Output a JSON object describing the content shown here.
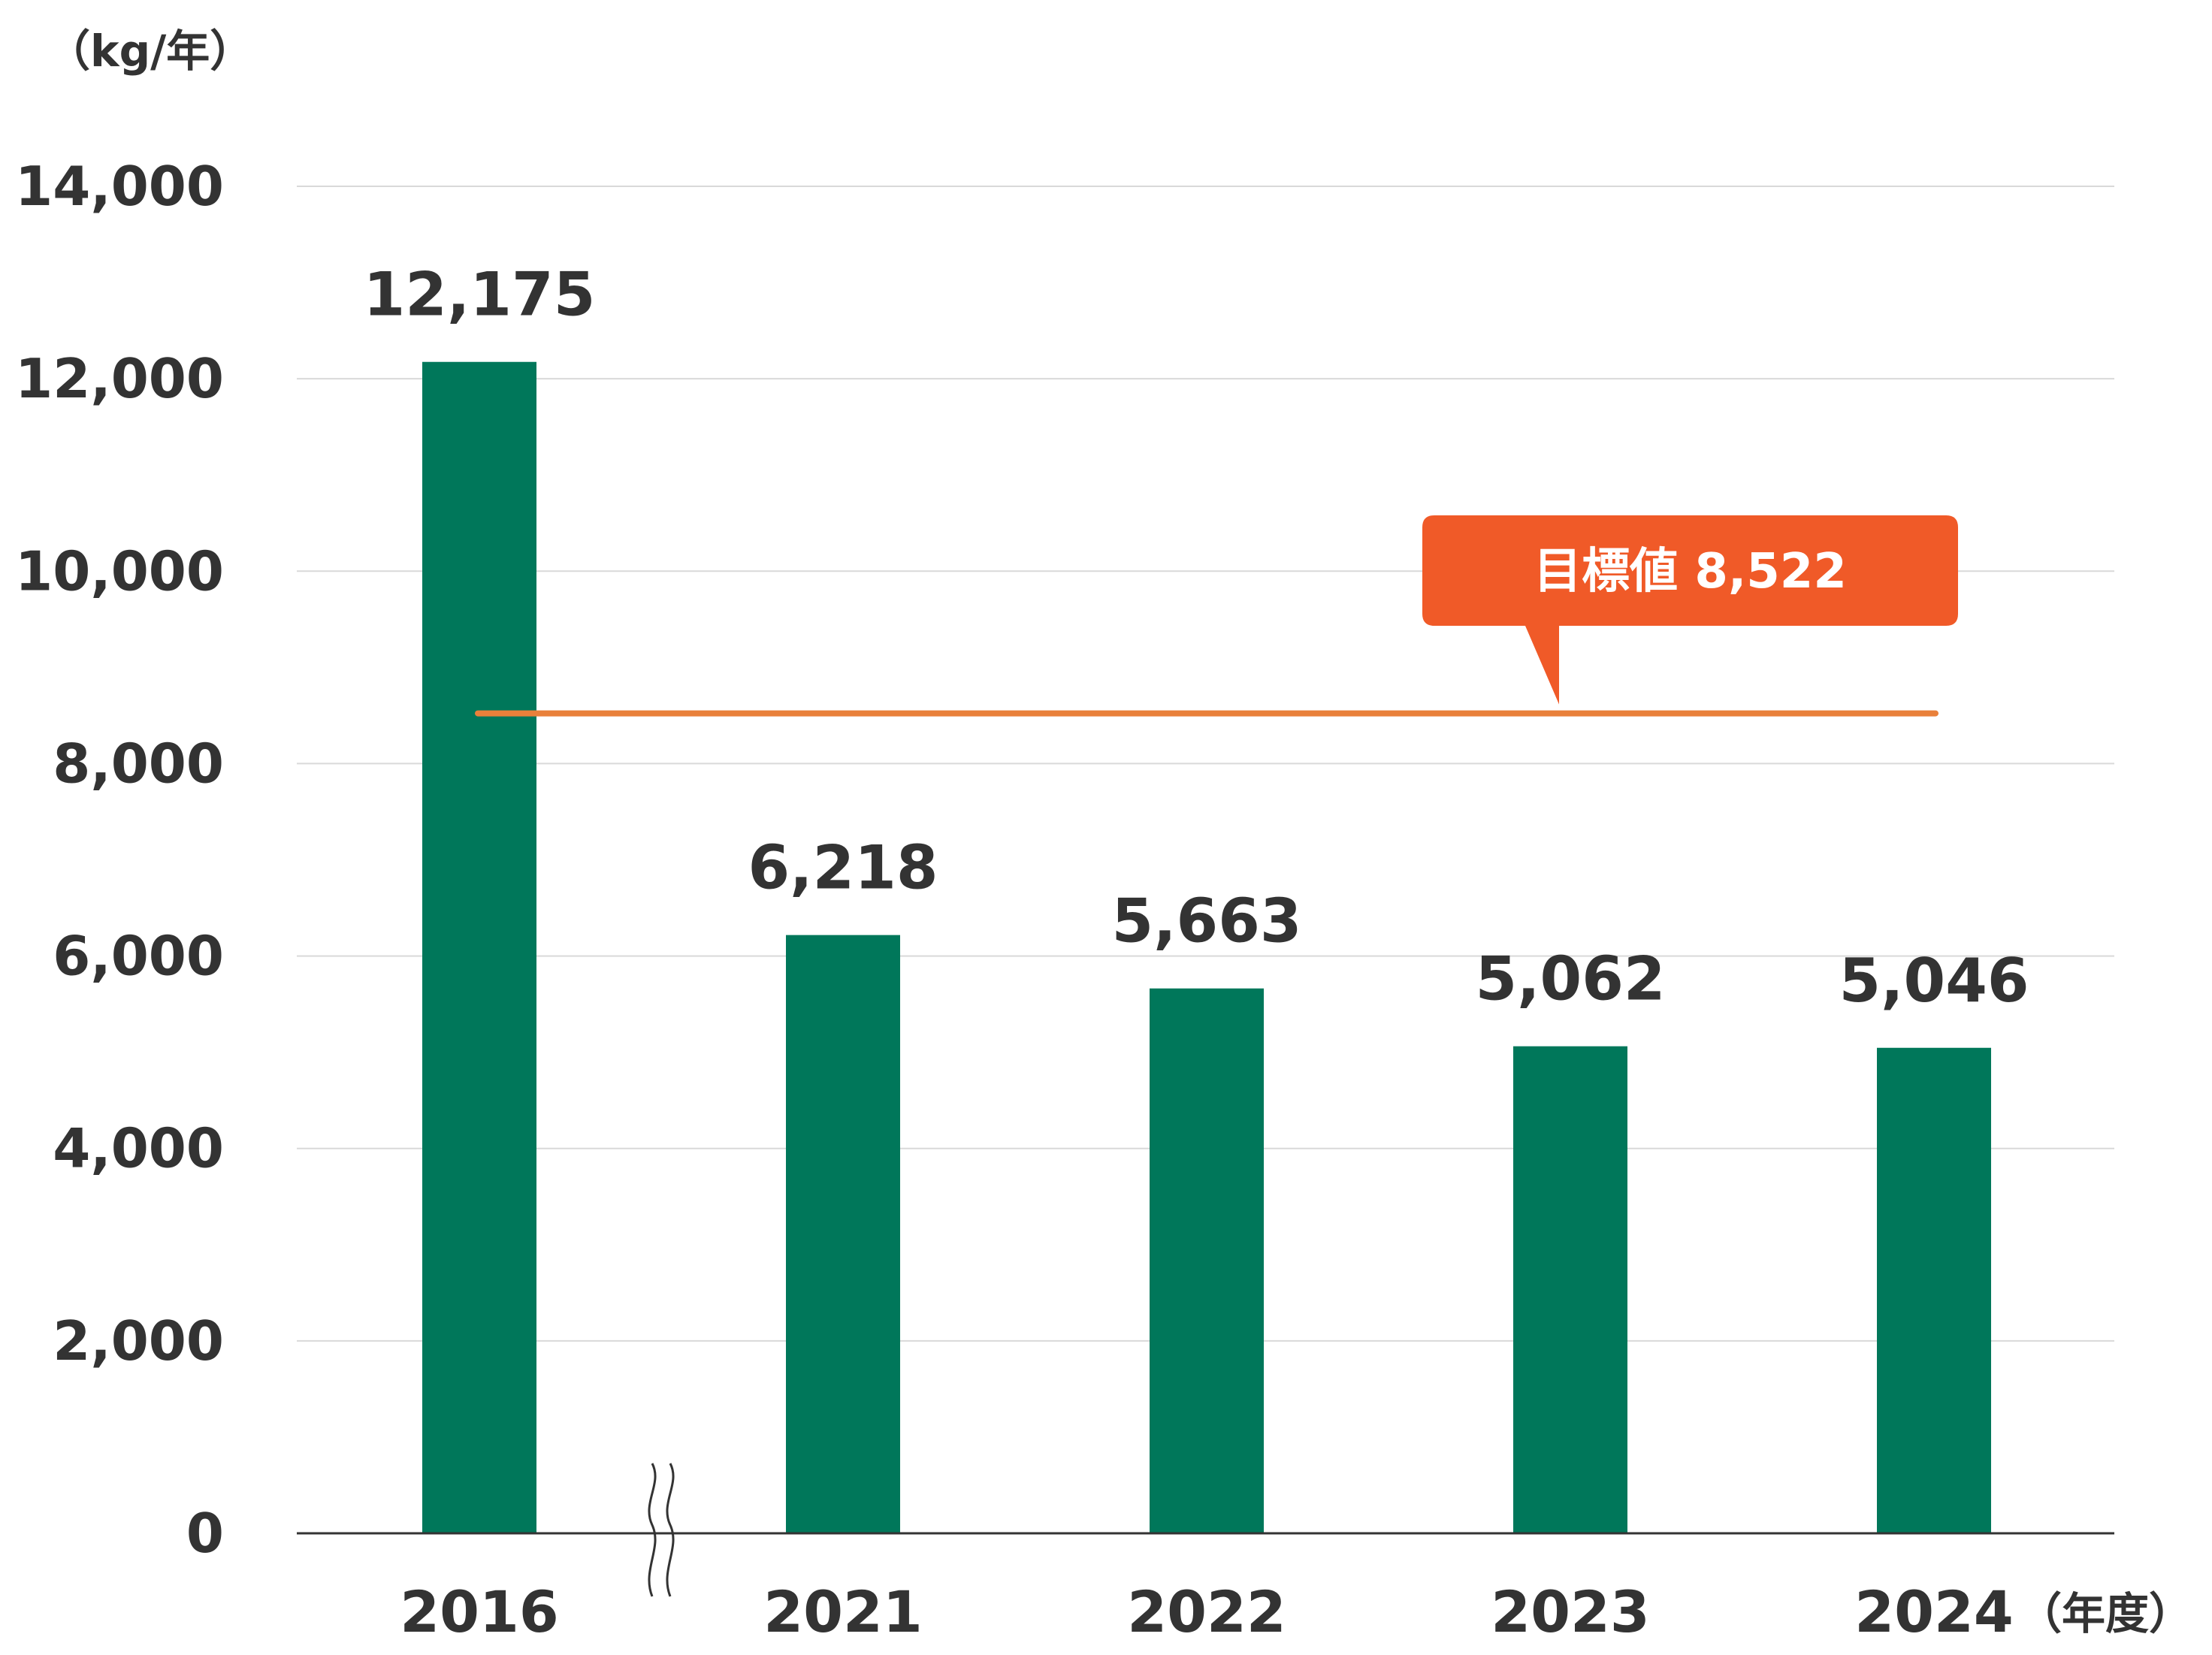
{
  "chart_data": {
    "type": "bar",
    "categories": [
      "2016",
      "2021",
      "2022",
      "2023",
      "2024"
    ],
    "values": [
      12175,
      6218,
      5663,
      5062,
      5046
    ],
    "data_labels": [
      "12,175",
      "6,218",
      "5,663",
      "5,062",
      "5,046"
    ],
    "ylabel": "（kg/年）",
    "xlabel": "（年度）",
    "ylim": [
      0,
      14000
    ],
    "yticks": [
      0,
      2000,
      4000,
      6000,
      8000,
      10000,
      12000,
      14000
    ],
    "ytick_labels": [
      "0",
      "2,000",
      "4,000",
      "6,000",
      "8,000",
      "10,000",
      "12,000",
      "14,000"
    ],
    "grid": true,
    "axis_break_between": [
      "2016",
      "2021"
    ],
    "target": {
      "value": 8522,
      "label": "目標値 8,522"
    },
    "colors": {
      "bar": "#00775A",
      "target_line": "#E9803A",
      "target_callout": "#F05A28",
      "grid": "#D9D9D9",
      "axis": "#333333",
      "text": "#333333"
    }
  }
}
